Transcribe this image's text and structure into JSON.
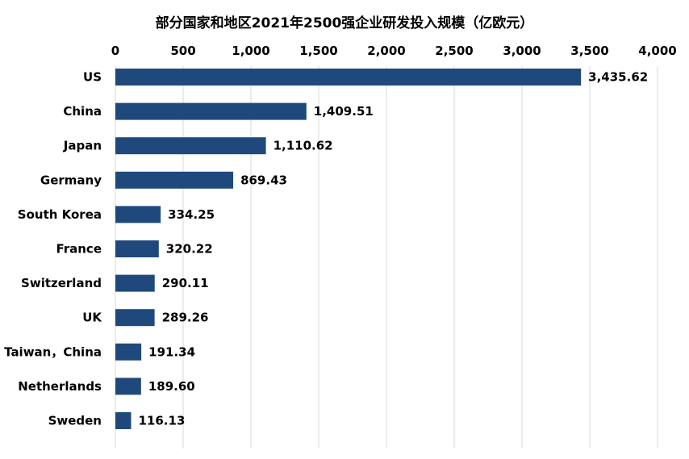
{
  "chart_data": {
    "type": "bar",
    "orientation": "horizontal",
    "title": "部分国家和地区2021年2500强企业研发投入规模（亿欧元）",
    "categories": [
      "US",
      "China",
      "Japan",
      "Germany",
      "South Korea",
      "France",
      "Switzerland",
      "UK",
      "Taiwan，China",
      "Netherlands",
      "Sweden"
    ],
    "values": [
      3435.62,
      1409.51,
      1110.62,
      869.43,
      334.25,
      320.22,
      290.11,
      289.26,
      191.34,
      189.6,
      116.13
    ],
    "value_labels": [
      "3,435.62",
      "1,409.51",
      "1,110.62",
      "869.43",
      "334.25",
      "320.22",
      "290.11",
      "289.26",
      "191.34",
      "189.60",
      "116.13"
    ],
    "x_ticks": [
      0,
      500,
      1000,
      1500,
      2000,
      2500,
      3000,
      3500,
      4000
    ],
    "x_tick_labels": [
      "0",
      "500",
      "1,000",
      "1,500",
      "2,000",
      "2,500",
      "3,000",
      "3,500",
      "4,000"
    ],
    "xlim": [
      0,
      4000
    ],
    "x_axis_position": "top",
    "grid": true,
    "legend": "none",
    "bar_color": "#1f497d",
    "grid_color": "#d9d9d9"
  }
}
